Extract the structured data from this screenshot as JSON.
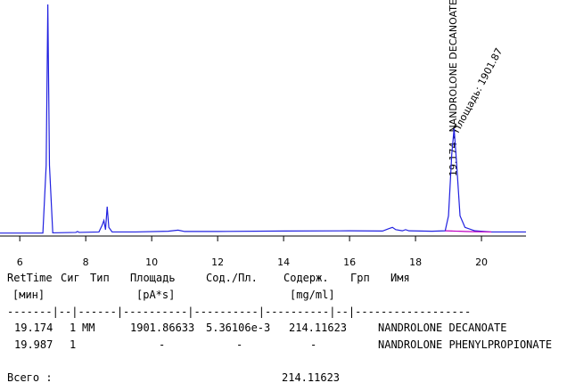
{
  "chart_data": {
    "type": "line",
    "x": [
      5.4,
      6.7,
      6.8,
      6.85,
      6.9,
      7.0,
      7.7,
      7.75,
      7.8,
      8.4,
      8.5,
      8.55,
      8.6,
      8.65,
      8.7,
      8.8,
      9.5,
      10.5,
      10.8,
      11,
      12,
      14,
      16,
      17,
      17.2,
      17.3,
      17.4,
      17.6,
      17.7,
      17.8,
      18.5,
      18.9,
      19.0,
      19.1,
      19.17,
      19.25,
      19.35,
      19.5,
      19.8,
      20.3,
      21.35
    ],
    "series": [
      {
        "color": "#2020e0",
        "values": [
          0.5,
          0.5,
          30,
          100,
          30,
          0.6,
          0.8,
          1.2,
          0.8,
          1.0,
          4,
          6,
          2,
          12,
          3,
          1,
          1,
          1.3,
          1.8,
          1.2,
          1.2,
          1.4,
          1.5,
          1.4,
          2.5,
          3,
          2,
          1.5,
          2,
          1.5,
          1.3,
          1.5,
          8,
          35,
          46,
          30,
          8,
          3,
          1.5,
          1,
          1
        ]
      },
      {
        "color": "#c000c0",
        "values": [
          null,
          null,
          null,
          null,
          null,
          null,
          null,
          null,
          null,
          null,
          null,
          null,
          null,
          null,
          null,
          null,
          null,
          null,
          null,
          null,
          null,
          null,
          null,
          null,
          null,
          null,
          null,
          null,
          null,
          null,
          null,
          1.5,
          1.45,
          1.4,
          1.37,
          1.33,
          1.3,
          1.2,
          1.1,
          1.0,
          null
        ]
      }
    ],
    "xlim": [
      5.4,
      21.35
    ],
    "xticks": [
      6,
      8,
      10,
      12,
      14,
      16,
      18,
      20
    ],
    "ylim": [
      0,
      100
    ],
    "annotations": [
      "19.174 - NANDROLONE DECANOATE",
      "Площадь: 1901.87"
    ]
  },
  "report": {
    "headers": [
      "RetTime",
      "Сиг",
      "Тип",
      "Площадь",
      "Сод./Пл.",
      "Содерж.",
      "Грп",
      "Имя"
    ],
    "units": [
      "[мин]",
      "[pA*s]",
      "[mg/ml]"
    ],
    "separator": "-------|--|------|----------|----------|----------|--|------------------",
    "rows": [
      {
        "ret_time": "19.174",
        "signal": "1",
        "type": "MM",
        "area": "1901.86633",
        "amount_per_area": "5.36106e-3",
        "amount": "214.11623",
        "name": "NANDROLONE DECANOATE"
      },
      {
        "ret_time": "19.987",
        "signal": "1",
        "area": "-",
        "amount_per_area": "-",
        "amount": "-",
        "name": "NANDROLONE PHENYLPROPIONATE"
      }
    ],
    "total_label": "Всего :",
    "total": "214.11623"
  }
}
